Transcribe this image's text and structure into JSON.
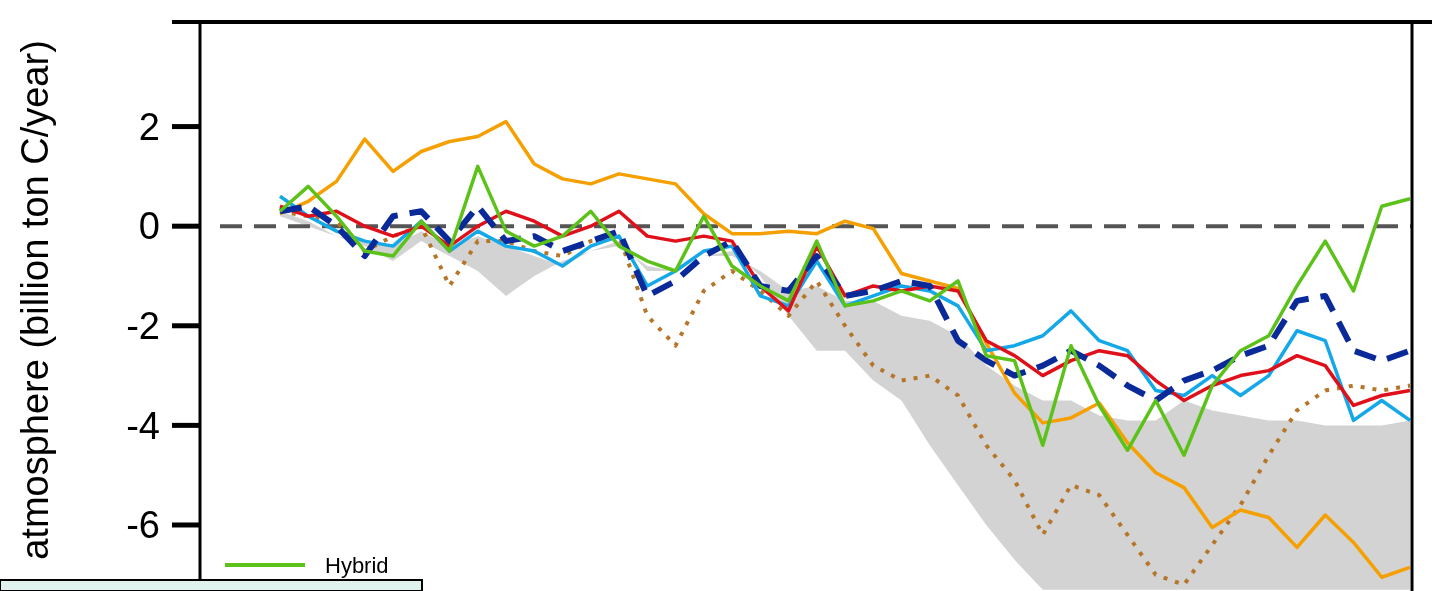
{
  "chart_data": {
    "type": "line",
    "ylabel": "atmosphere (billion ton C/year)",
    "categories": [
      null,
      null,
      null,
      null,
      null,
      null,
      null,
      null,
      null,
      null,
      null,
      null,
      null,
      null,
      null,
      null,
      null,
      null,
      null,
      null,
      null,
      null,
      null,
      null,
      null,
      null,
      null,
      null,
      null,
      null,
      null,
      null,
      null,
      null,
      null,
      null,
      null,
      null,
      null,
      null,
      null
    ],
    "ylim": [
      -7.35,
      4.1
    ],
    "yticks": [
      2,
      0,
      -2,
      -4,
      -6
    ],
    "grid": false,
    "legend": "bottom left",
    "marker": "none",
    "ref_lines": [
      {
        "axis": "y",
        "value": 0,
        "color": "#555555",
        "line_style": "dashed"
      }
    ],
    "series": [
      {
        "type": "area",
        "color": "#d3d3d3",
        "values": [
          null,
          null,
          null,
          null,
          null,
          null,
          null,
          null,
          null,
          null,
          null,
          null,
          null,
          null,
          null,
          null,
          null,
          null,
          null,
          null,
          null,
          null,
          null,
          null,
          null,
          null,
          null,
          null,
          null,
          null,
          null,
          null,
          null,
          null,
          null,
          null,
          null,
          null,
          null,
          null,
          null
        ],
        "upper": [
          0.3,
          0.1,
          -0.2,
          -0.3,
          -0.4,
          -0.1,
          -0.4,
          -0.2,
          -0.4,
          -0.6,
          -0.8,
          -0.5,
          -0.3,
          -0.9,
          -0.9,
          -0.6,
          -0.6,
          -0.9,
          -1.3,
          -1.2,
          -1.5,
          -1.5,
          -1.8,
          -1.9,
          -2.2,
          -2.8,
          -3.2,
          -3.5,
          -3.5,
          -3.8,
          -3.9,
          -3.9,
          -3.5,
          -3.7,
          -3.8,
          -3.9,
          -3.9,
          -4.0,
          -4.0,
          -4.0,
          -3.9
        ],
        "lower": [
          0.2,
          0.0,
          -0.2,
          -0.4,
          -0.7,
          -0.3,
          -0.6,
          -0.9,
          -1.4,
          -1.0,
          -0.7,
          -0.5,
          -0.4,
          -0.8,
          -0.9,
          -0.6,
          -0.5,
          -1.0,
          -1.8,
          -2.5,
          -2.5,
          -3.1,
          -3.5,
          -4.4,
          -5.2,
          -6.0,
          -6.7,
          -7.3,
          -7.3,
          -7.3,
          -7.3,
          -7.3,
          -7.3,
          -7.3,
          -7.3,
          -7.3,
          -7.3,
          -7.3,
          -7.3,
          -7.3,
          -7.3
        ]
      },
      {
        "color": "#b5762a",
        "line_style": "dotted",
        "values": [
          0.3,
          0.2,
          0.1,
          -0.5,
          -0.2,
          0.0,
          -1.2,
          -0.3,
          -0.3,
          -0.5,
          -0.6,
          -0.3,
          -0.2,
          -1.8,
          -2.4,
          -1.3,
          -0.9,
          -1.3,
          -1.8,
          -1.1,
          -2.0,
          -2.8,
          -3.1,
          -3.0,
          -3.4,
          -4.4,
          -5.1,
          -6.2,
          -5.2,
          -5.4,
          -6.2,
          -7.0,
          -7.2,
          -6.4,
          -5.6,
          -4.6,
          -3.7,
          -3.3,
          -3.2,
          -3.3,
          -3.2
        ]
      },
      {
        "color": "#f5a000",
        "values": [
          0.25,
          0.5,
          0.9,
          1.75,
          1.1,
          1.5,
          1.7,
          1.8,
          2.1,
          1.25,
          0.95,
          0.85,
          1.05,
          0.95,
          0.85,
          0.25,
          -0.15,
          -0.15,
          -0.1,
          -0.15,
          0.1,
          -0.05,
          -0.95,
          -1.1,
          -1.25,
          -2.35,
          -3.35,
          -3.95,
          -3.85,
          -3.55,
          -4.35,
          -4.95,
          -5.25,
          -6.05,
          -5.7,
          -5.85,
          -6.45,
          -5.8,
          -6.35,
          -7.05,
          -6.85
        ]
      },
      {
        "color": "#15a8e8",
        "values": [
          0.6,
          0.2,
          -0.1,
          -0.3,
          -0.4,
          0.1,
          -0.5,
          -0.1,
          -0.4,
          -0.5,
          -0.8,
          -0.4,
          -0.2,
          -1.2,
          -0.9,
          -0.5,
          -0.4,
          -1.4,
          -1.6,
          -0.7,
          -1.6,
          -1.4,
          -1.2,
          -1.3,
          -1.6,
          -2.5,
          -2.4,
          -2.2,
          -1.7,
          -2.3,
          -2.5,
          -3.3,
          -3.4,
          -3.0,
          -3.4,
          -3.0,
          -2.1,
          -2.3,
          -3.9,
          -3.5,
          -3.9
        ]
      },
      {
        "color": "#e0101a",
        "values": [
          0.4,
          0.2,
          0.3,
          0.0,
          -0.2,
          0.0,
          -0.4,
          0.0,
          0.3,
          0.1,
          -0.2,
          0.0,
          0.3,
          -0.2,
          -0.3,
          -0.2,
          -0.3,
          -1.2,
          -1.7,
          -0.4,
          -1.4,
          -1.2,
          -1.3,
          -1.2,
          -1.3,
          -2.3,
          -2.6,
          -3.0,
          -2.7,
          -2.5,
          -2.6,
          -3.1,
          -3.5,
          -3.2,
          -3.0,
          -2.9,
          -2.6,
          -2.8,
          -3.6,
          -3.4,
          -3.3
        ]
      },
      {
        "color": "#0a2a9a",
        "line_style": "dashed",
        "values": [
          0.3,
          0.4,
          0.0,
          -0.6,
          0.2,
          0.3,
          -0.3,
          0.4,
          -0.3,
          -0.2,
          -0.5,
          -0.3,
          -0.1,
          -1.4,
          -1.1,
          -0.6,
          -0.3,
          -1.2,
          -1.3,
          -0.6,
          -1.4,
          -1.3,
          -1.1,
          -1.2,
          -2.3,
          -2.7,
          -3.0,
          -2.8,
          -2.5,
          -2.8,
          -3.2,
          -3.5,
          -3.1,
          -2.9,
          -2.6,
          -2.4,
          -1.5,
          -1.4,
          -2.5,
          -2.7,
          -2.5
        ]
      },
      {
        "name": "Hybrid",
        "color": "#5cc21a",
        "values": [
          0.3,
          0.8,
          0.2,
          -0.5,
          -0.6,
          0.1,
          -0.5,
          1.2,
          -0.1,
          -0.4,
          -0.2,
          0.3,
          -0.4,
          -0.7,
          -0.9,
          0.2,
          -0.8,
          -1.2,
          -1.5,
          -0.3,
          -1.6,
          -1.5,
          -1.3,
          -1.5,
          -1.1,
          -2.6,
          -2.7,
          -4.4,
          -2.4,
          -3.6,
          -4.5,
          -3.5,
          -4.6,
          -3.2,
          -2.5,
          -2.2,
          -1.2,
          -0.3,
          -1.3,
          0.4,
          0.55
        ]
      }
    ]
  }
}
